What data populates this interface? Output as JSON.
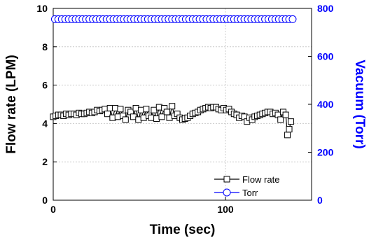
{
  "chart_data": {
    "type": "scatter",
    "title": "",
    "xlabel": "Time (sec)",
    "ylabel": "Flow rate (LPM)",
    "ylabel_right": "Vacuum (Torr)",
    "xlim": [
      0,
      150
    ],
    "ylim": [
      0,
      10
    ],
    "ylim_right": [
      0,
      800
    ],
    "x_ticks": [
      "0",
      "100"
    ],
    "y_ticks": [
      "0",
      "2",
      "4",
      "6",
      "8",
      "10"
    ],
    "y_ticks_right": [
      "0",
      "200",
      "400",
      "600",
      "800"
    ],
    "grid": true,
    "legend_position": "bottom-right",
    "colors": {
      "flow": "#000000",
      "torr": "#0000ff",
      "grid": "#cccccc"
    },
    "series": [
      {
        "name": "Flow rate",
        "axis": "left",
        "marker": "square",
        "x": [
          0,
          1.5,
          3,
          4.5,
          6,
          7.5,
          9,
          10.5,
          12,
          13.5,
          15,
          16.5,
          18,
          19.5,
          21,
          22.5,
          24,
          25.5,
          27,
          28.5,
          30,
          31.5,
          33,
          34.5,
          36,
          37.5,
          39,
          40.5,
          42,
          43.5,
          45,
          46.5,
          48,
          49.5,
          51,
          52.5,
          54,
          55.5,
          57,
          58.5,
          60,
          61.5,
          63,
          64.5,
          66,
          67.5,
          69,
          70.5,
          72,
          73.5,
          75,
          76.5,
          78,
          79.5,
          81,
          82.5,
          84,
          85.5,
          87,
          88.5,
          90,
          91.5,
          93,
          94.5,
          96,
          97.5,
          99,
          100.5,
          102,
          103.5,
          105,
          106.5,
          108,
          109.5,
          111,
          112.5,
          114,
          115.5,
          117,
          118.5,
          120,
          121.5,
          123,
          124.5,
          126,
          127.5,
          129,
          130.5,
          132,
          133.5,
          135,
          136,
          137,
          138
        ],
        "values": [
          4.35,
          4.4,
          4.45,
          4.45,
          4.4,
          4.5,
          4.45,
          4.5,
          4.5,
          4.45,
          4.55,
          4.5,
          4.5,
          4.55,
          4.6,
          4.55,
          4.6,
          4.7,
          4.65,
          4.7,
          4.75,
          4.5,
          4.8,
          4.3,
          4.8,
          4.35,
          4.75,
          4.4,
          4.2,
          4.7,
          4.6,
          4.35,
          4.8,
          4.2,
          4.7,
          4.3,
          4.75,
          4.4,
          4.3,
          4.7,
          4.25,
          4.85,
          4.35,
          4.8,
          4.6,
          4.3,
          4.9,
          4.4,
          4.5,
          4.3,
          4.2,
          4.25,
          4.3,
          4.4,
          4.5,
          4.55,
          4.6,
          4.7,
          4.75,
          4.8,
          4.85,
          4.8,
          4.85,
          4.85,
          4.75,
          4.7,
          4.8,
          4.7,
          4.75,
          4.6,
          4.5,
          4.45,
          4.3,
          4.4,
          4.35,
          4.1,
          4.3,
          4.2,
          4.35,
          4.4,
          4.45,
          4.5,
          4.55,
          4.6,
          4.6,
          4.5,
          4.55,
          4.45,
          4.2,
          4.6,
          4.45,
          3.4,
          3.7,
          4.1
        ]
      },
      {
        "name": "Torr",
        "axis": "right",
        "marker": "circle",
        "x": [
          1,
          3,
          5,
          7,
          9,
          11,
          13,
          15,
          17,
          19,
          21,
          23,
          25,
          27,
          29,
          31,
          33,
          35,
          37,
          39,
          41,
          43,
          45,
          47,
          49,
          51,
          53,
          55,
          57,
          59,
          61,
          63,
          65,
          67,
          69,
          71,
          73,
          75,
          77,
          79,
          81,
          83,
          85,
          87,
          89,
          91,
          93,
          95,
          97,
          99,
          101,
          103,
          105,
          107,
          109,
          111,
          113,
          115,
          117,
          119,
          121,
          123,
          125,
          127,
          129,
          131,
          133,
          135,
          137,
          139
        ],
        "values": [
          755,
          755,
          755,
          755,
          755,
          755,
          755,
          755,
          755,
          755,
          755,
          755,
          755,
          755,
          755,
          755,
          755,
          755,
          755,
          755,
          755,
          755,
          755,
          755,
          755,
          755,
          755,
          755,
          755,
          755,
          755,
          755,
          755,
          755,
          755,
          755,
          755,
          755,
          755,
          755,
          755,
          755,
          755,
          755,
          755,
          755,
          755,
          755,
          755,
          755,
          755,
          755,
          755,
          755,
          755,
          755,
          755,
          755,
          755,
          755,
          755,
          755,
          755,
          755,
          755,
          755,
          755,
          755,
          755,
          755
        ]
      }
    ]
  }
}
